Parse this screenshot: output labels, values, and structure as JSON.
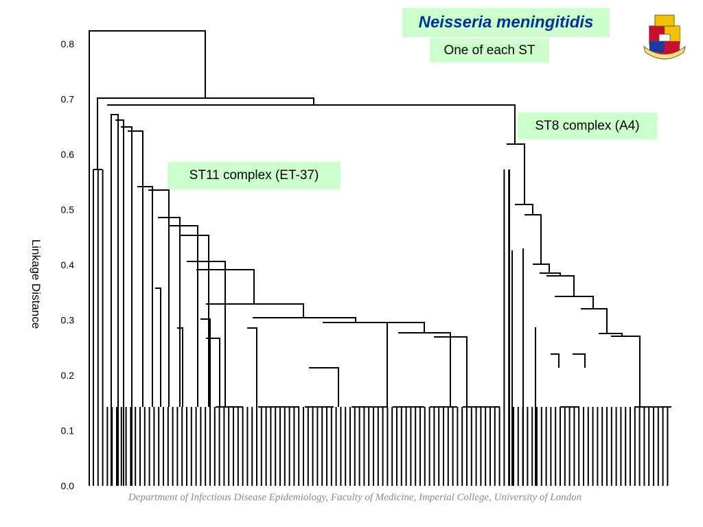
{
  "title": "Neisseria meningitidis",
  "subtitle": "One of each ST",
  "clusters": {
    "st8": "ST8 complex (A4)",
    "st11": "ST11 complex (ET-37)"
  },
  "axis": {
    "label": "Linkage Distance",
    "ticks": [
      "0.0",
      "0.1",
      "0.2",
      "0.3",
      "0.4",
      "0.5",
      "0.6",
      "0.7",
      "0.8"
    ],
    "range": [
      0,
      0.8
    ]
  },
  "footer": "Department of Infectious Disease Epidemiology, Faculty of Medicine, Imperial College, University of London",
  "colors": {
    "title": "#003399",
    "label_bg": "#ccffcc",
    "footer": "#8a8a8a"
  }
}
